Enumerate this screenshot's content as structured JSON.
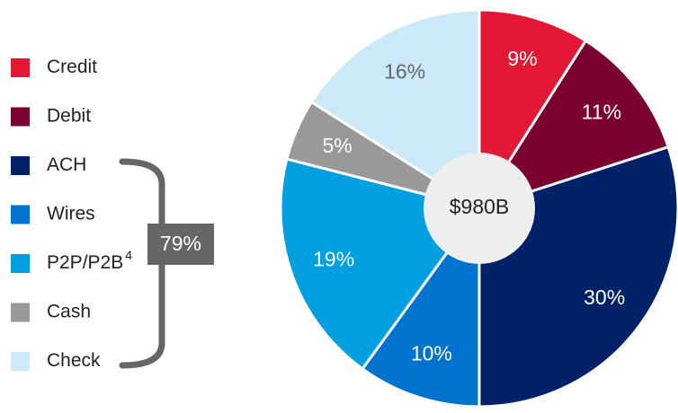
{
  "chart_data": {
    "type": "pie",
    "categories": [
      "Credit",
      "Debit",
      "ACH",
      "Wires",
      "P2P/P2B",
      "Cash",
      "Check"
    ],
    "category_footnotes": [
      null,
      null,
      null,
      null,
      "4",
      null,
      null
    ],
    "values": [
      9,
      11,
      30,
      10,
      19,
      5,
      16
    ],
    "value_labels": [
      "9%",
      "11%",
      "30%",
      "10%",
      "19%",
      "5%",
      "16%"
    ],
    "colors": [
      "#e31837",
      "#7a0030",
      "#012169",
      "#0073cf",
      "#009fdf",
      "#999999",
      "#cbe9f8"
    ],
    "label_colors": [
      "#ffffff",
      "#ffffff",
      "#ffffff",
      "#ffffff",
      "#ffffff",
      "#ffffff",
      "#666666"
    ],
    "center_label": "$980B",
    "bracket_label": "79%"
  }
}
